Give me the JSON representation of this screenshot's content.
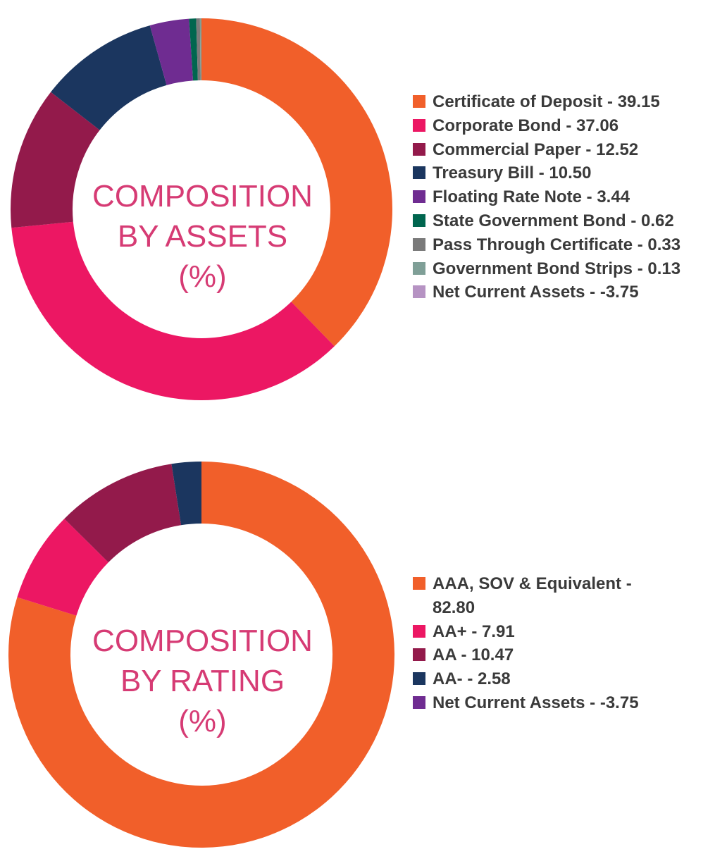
{
  "colors": [
    "#f15f2a",
    "#ec1763",
    "#931a4b",
    "#1b365f",
    "#6f2c91",
    "#00664f",
    "#7a7a7a",
    "#7f9f97",
    "#b693c3"
  ],
  "chart_data": [
    {
      "type": "donut",
      "title_lines": [
        "COMPOSITION",
        "BY ASSETS",
        "(%)"
      ],
      "legend_placement": "right",
      "series": [
        {
          "label": "Certificate of Deposit - 39.15",
          "value": 39.15,
          "color": "#f15f2a"
        },
        {
          "label": "Corporate Bond - 37.06",
          "value": 37.06,
          "color": "#ec1763"
        },
        {
          "label": "Commercial Paper - 12.52",
          "value": 12.52,
          "color": "#931a4b"
        },
        {
          "label": "Treasury Bill - 10.50",
          "value": 10.5,
          "color": "#1b365f"
        },
        {
          "label": "Floating Rate Note - 3.44",
          "value": 3.44,
          "color": "#6f2c91"
        },
        {
          "label": "State Government Bond - 0.62",
          "value": 0.62,
          "color": "#00664f"
        },
        {
          "label": "Pass Through Certificate - 0.33",
          "value": 0.33,
          "color": "#7a7a7a"
        },
        {
          "label": "Government Bond Strips - 0.13",
          "value": 0.13,
          "color": "#7f9f97"
        },
        {
          "label": "Net Current Assets - -3.75",
          "value": -3.75,
          "color": "#b693c3"
        }
      ]
    },
    {
      "type": "donut",
      "title_lines": [
        "COMPOSITION",
        "BY RATING",
        "(%)"
      ],
      "legend_placement": "right",
      "series": [
        {
          "label": "AAA, SOV & Equivalent - 82.80",
          "value": 82.8,
          "color": "#f15f2a"
        },
        {
          "label": "AA+ - 7.91",
          "value": 7.91,
          "color": "#ec1763"
        },
        {
          "label": "AA - 10.47",
          "value": 10.47,
          "color": "#931a4b"
        },
        {
          "label": "AA- - 2.58",
          "value": 2.58,
          "color": "#1b365f"
        },
        {
          "label": "Net Current Assets - -3.75",
          "value": -3.75,
          "color": "#6f2c91"
        }
      ]
    }
  ]
}
